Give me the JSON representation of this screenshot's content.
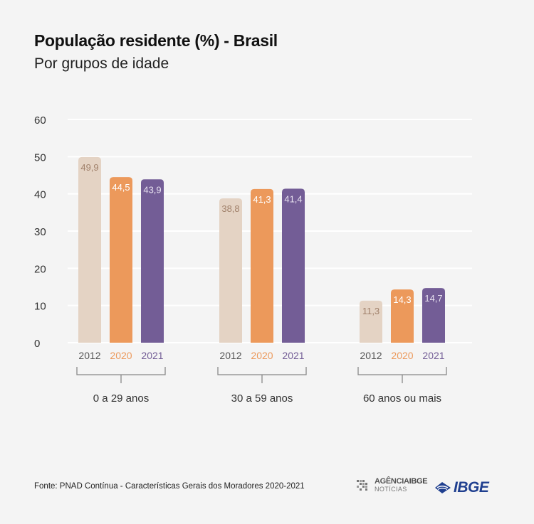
{
  "title": "População residente (%) - Brasil",
  "subtitle": "Por grupos de idade",
  "source": "Fonte: PNAD Contínua - Características Gerais dos Moradores 2020-2021",
  "logos": {
    "agencia_top_1": "AGÊNCIA",
    "agencia_top_2": "IBGE",
    "agencia_bottom": "NOTÍCIAS",
    "ibge": "IBGE"
  },
  "colors": {
    "2012": "#e4d3c4",
    "2020": "#ec995b",
    "2021": "#735d96",
    "label_2012": "#a0806a",
    "label_2020": "#ffffff",
    "label_2021": "#e8e2f0",
    "ibge_blue": "#1f3f8f"
  },
  "chart_data": {
    "type": "bar",
    "title": "População residente (%) - Brasil",
    "subtitle": "Por grupos de idade",
    "categories": [
      "0 a 29 anos",
      "30 a 59 anos",
      "60 anos ou mais"
    ],
    "series": [
      {
        "name": "2012",
        "values": [
          49.9,
          38.8,
          11.3
        ],
        "labels": [
          "49,9",
          "38,8",
          "11,3"
        ]
      },
      {
        "name": "2020",
        "values": [
          44.5,
          41.3,
          14.3
        ],
        "labels": [
          "44,5",
          "41,3",
          "14,3"
        ]
      },
      {
        "name": "2021",
        "values": [
          43.9,
          41.4,
          14.7
        ],
        "labels": [
          "43,9",
          "41,4",
          "14,7"
        ]
      }
    ],
    "yticks": [
      "0",
      "10",
      "20",
      "30",
      "40",
      "50",
      "60"
    ],
    "ylim": [
      0,
      60
    ],
    "grid": true,
    "legend": "none"
  }
}
